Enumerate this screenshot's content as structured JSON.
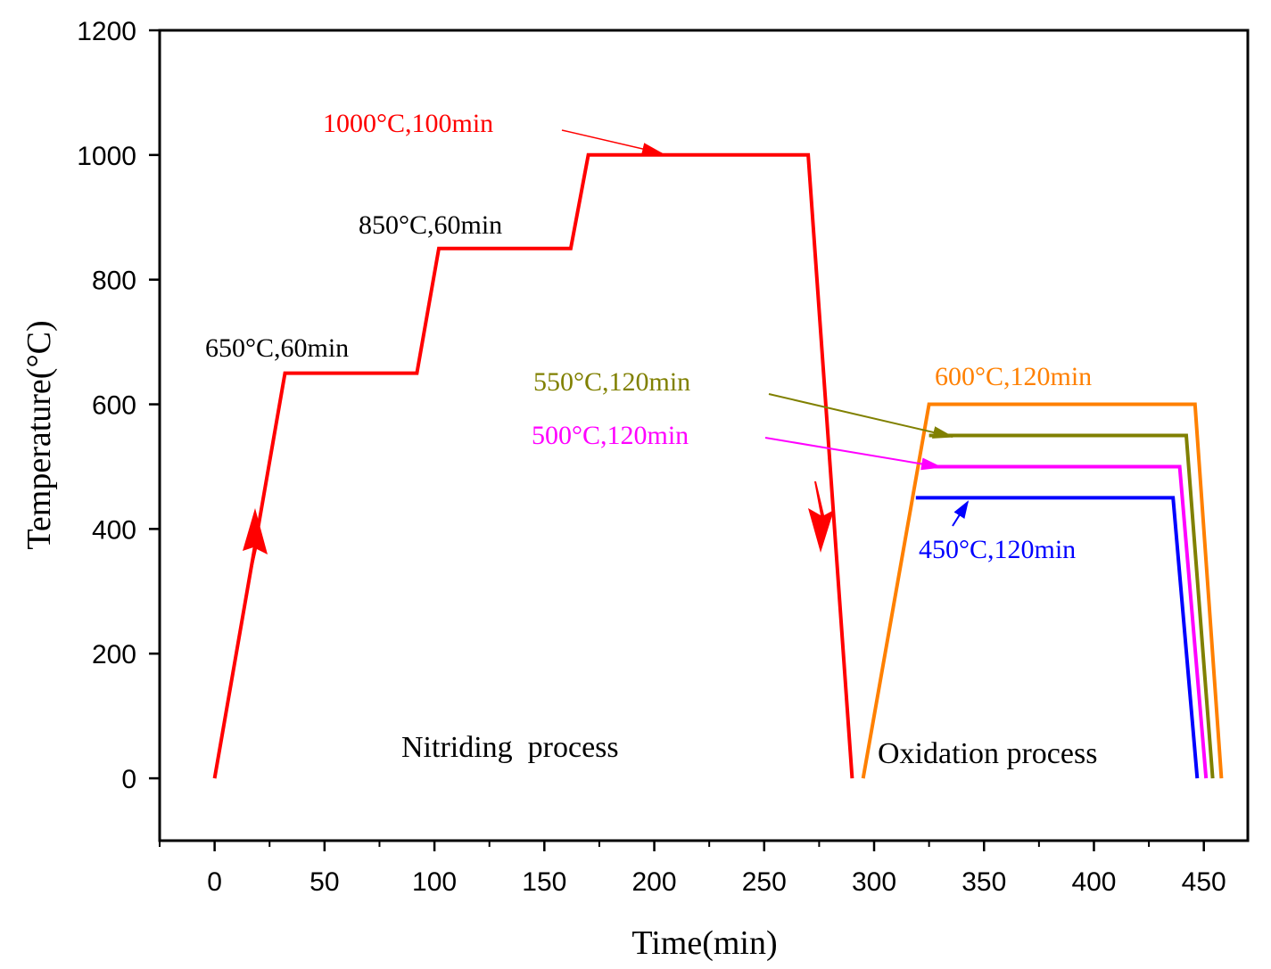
{
  "chart_data": {
    "type": "line",
    "xlabel": "Time(min)",
    "ylabel": "Temperature(°C)",
    "xlim": [
      -25,
      470
    ],
    "ylim": [
      -100,
      1200
    ],
    "x_ticks": [
      0,
      50,
      100,
      150,
      200,
      250,
      300,
      350,
      400,
      450
    ],
    "y_ticks": [
      0,
      200,
      400,
      600,
      800,
      1000,
      1200
    ],
    "x_tick_labels": [
      "0",
      "50",
      "100",
      "150",
      "200",
      "250",
      "300",
      "350",
      "400",
      "450"
    ],
    "y_tick_labels": [
      "0",
      "200",
      "400",
      "600",
      "800",
      "1000",
      "1200"
    ],
    "grid": false,
    "series": [
      {
        "color": "#ff0000",
        "x": [
          0,
          32,
          92,
          102,
          162,
          170,
          270,
          290
        ],
        "y": [
          0,
          650,
          650,
          850,
          850,
          1000,
          1000,
          0
        ]
      },
      {
        "color": "#ff8000",
        "x": [
          295,
          325,
          446,
          458
        ],
        "y": [
          0,
          600,
          600,
          0
        ]
      },
      {
        "color": "#808000",
        "x": [
          325,
          442,
          454
        ],
        "y": [
          550,
          550,
          0
        ]
      },
      {
        "color": "#ff00ff",
        "x": [
          322,
          439,
          451
        ],
        "y": [
          500,
          500,
          0
        ]
      },
      {
        "color": "#0000ff",
        "x": [
          319,
          436,
          447
        ],
        "y": [
          450,
          450,
          0
        ]
      }
    ],
    "annotations": {
      "a1000": {
        "text": "1000°C,100min",
        "color": "#ff0000"
      },
      "a850": {
        "text": "850°C,60min",
        "color": "#000000"
      },
      "a650": {
        "text": "650°C,60min",
        "color": "#000000"
      },
      "a550": {
        "text": "550°C,120min",
        "color": "#808000"
      },
      "a500": {
        "text": "500°C,120min",
        "color": "#ff00ff"
      },
      "a600": {
        "text": "600°C,120min",
        "color": "#ff8000"
      },
      "a450": {
        "text": "450°C,120min",
        "color": "#0000ff"
      },
      "nitriding": {
        "text": "Nitriding  process"
      },
      "oxidation": {
        "text": "Oxidation process"
      }
    }
  }
}
